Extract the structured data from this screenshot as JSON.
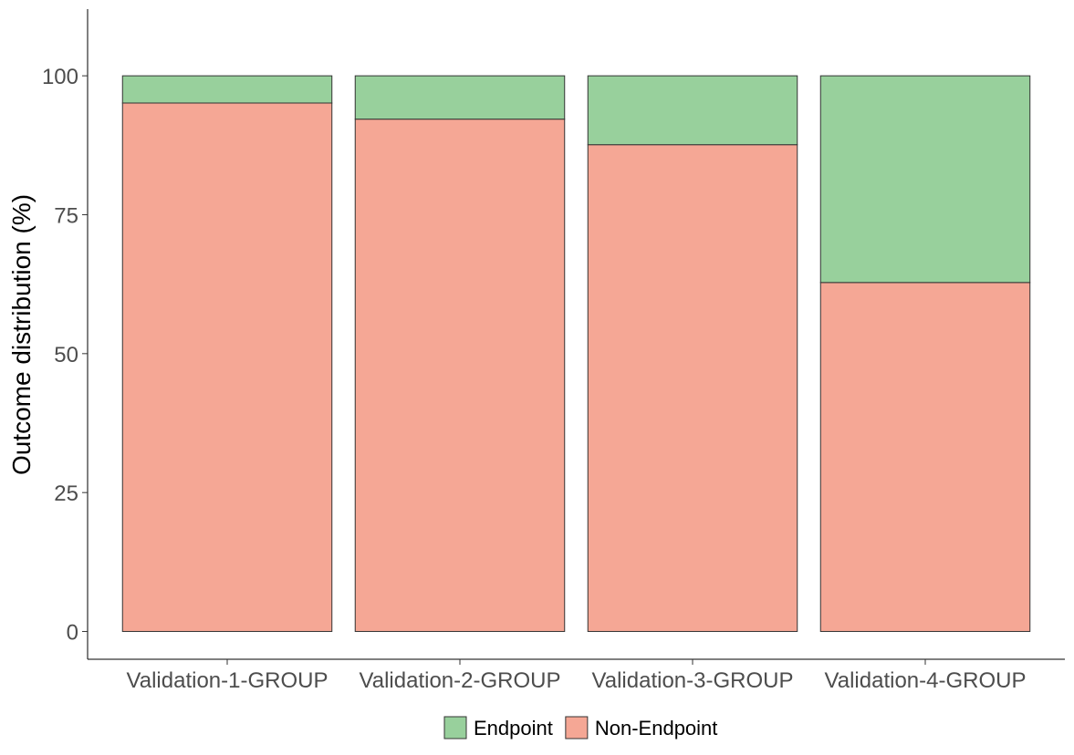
{
  "chart_data": {
    "type": "bar",
    "stacked": true,
    "categories": [
      "Validation-1-GROUP",
      "Validation-2-GROUP",
      "Validation-3-GROUP",
      "Validation-4-GROUP"
    ],
    "series": [
      {
        "name": "Non-Endpoint",
        "color": "#f5a795",
        "values": [
          95.1,
          92.2,
          87.6,
          62.8
        ]
      },
      {
        "name": "Endpoint",
        "color": "#98d09c",
        "values": [
          4.9,
          7.8,
          12.4,
          37.2
        ]
      }
    ],
    "xlabel": "",
    "ylabel": "Outcome distribution (%)",
    "ylim": [
      -5,
      112
    ],
    "yticks": [
      0,
      25,
      50,
      75,
      100
    ],
    "legend": {
      "position": "bottom",
      "entries": [
        {
          "name": "Endpoint",
          "color": "#98d09c"
        },
        {
          "name": "Non-Endpoint",
          "color": "#f5a795"
        }
      ]
    },
    "grid": false
  }
}
